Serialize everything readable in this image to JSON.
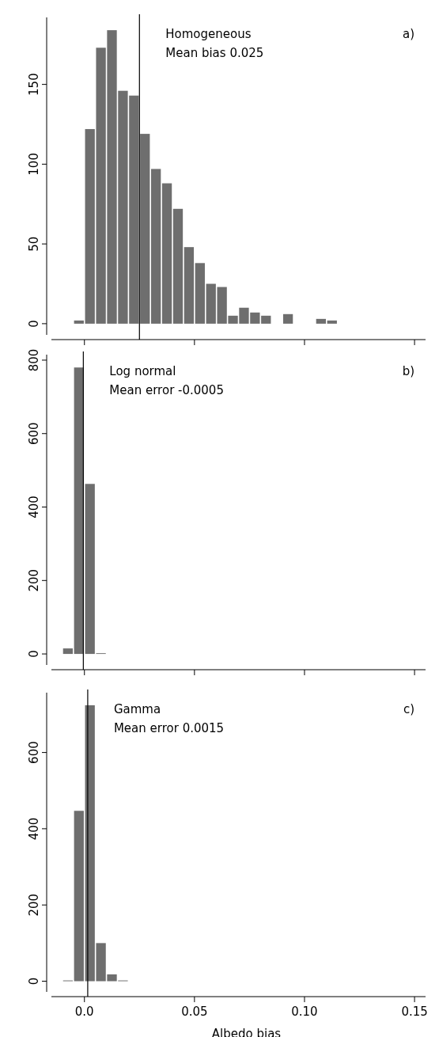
{
  "chart_data": [
    {
      "type": "histogram",
      "color": "#6e6e6e",
      "bins": [
        -0.005,
        0,
        0.005,
        0.01,
        0.015,
        0.02,
        0.025,
        0.03,
        0.035,
        0.04,
        0.045,
        0.05,
        0.055,
        0.06,
        0.065,
        0.07,
        0.075,
        0.08,
        0.085,
        0.09,
        0.095,
        0.1,
        0.105,
        0.11,
        0.115
      ],
      "values": [
        2,
        122,
        173,
        184,
        146,
        143,
        119,
        97,
        88,
        72,
        48,
        38,
        25,
        23,
        5,
        10,
        7,
        5,
        0,
        6,
        0,
        0,
        3,
        2
      ],
      "xlim": [
        -0.015,
        0.155
      ],
      "xticks": [
        {
          "value": 0,
          "label": null
        },
        {
          "value": 0.05,
          "label": null
        },
        {
          "value": 0.1,
          "label": null
        },
        {
          "value": 0.15,
          "label": null
        }
      ],
      "ylim": [
        -7,
        192
      ],
      "yticks": [
        0,
        50,
        100,
        150
      ],
      "tick_labels": "y",
      "ref_lines": [
        {
          "axis": "x",
          "value": 0.025,
          "color": "#000000"
        }
      ],
      "annotations": [
        "Homogeneous",
        "Mean bias 0.025",
        "a)"
      ]
    },
    {
      "type": "histogram",
      "color": "#6e6e6e",
      "bins": [
        -0.01,
        -0.005,
        0,
        0.005,
        0.01
      ],
      "values": [
        15,
        780,
        463,
        2
      ],
      "xlim": [
        -0.015,
        0.155
      ],
      "xticks": [
        {
          "value": 0,
          "label": null
        },
        {
          "value": 0.05,
          "label": null
        },
        {
          "value": 0.1,
          "label": null
        },
        {
          "value": 0.15,
          "label": null
        }
      ],
      "ylim": [
        -30,
        815
      ],
      "yticks": [
        0,
        200,
        400,
        600,
        800
      ],
      "tick_labels": "y",
      "ref_lines": [
        {
          "axis": "x",
          "value": -0.0005,
          "color": "#000000"
        }
      ],
      "annotations": [
        "Log normal",
        "Mean error -0.0005",
        "b)"
      ]
    },
    {
      "type": "histogram",
      "color": "#6e6e6e",
      "bins": [
        -0.01,
        -0.005,
        0,
        0.005,
        0.01,
        0.015,
        0.02
      ],
      "values": [
        2,
        447,
        724,
        100,
        18,
        2
      ],
      "xlim": [
        -0.015,
        0.155
      ],
      "xticks": [
        {
          "value": 0,
          "label": "0.0"
        },
        0.05,
        {
          "value": 0.1,
          "label": "0.10"
        },
        0.15
      ],
      "ylim": [
        -28,
        757
      ],
      "yticks": [
        0,
        200,
        400,
        600
      ],
      "xlabel": "Albedo bias",
      "ref_lines": [
        {
          "axis": "x",
          "value": 0.0015,
          "color": "#000000"
        }
      ],
      "annotations": [
        "Gamma",
        "Mean error 0.0015",
        "c)"
      ]
    }
  ]
}
